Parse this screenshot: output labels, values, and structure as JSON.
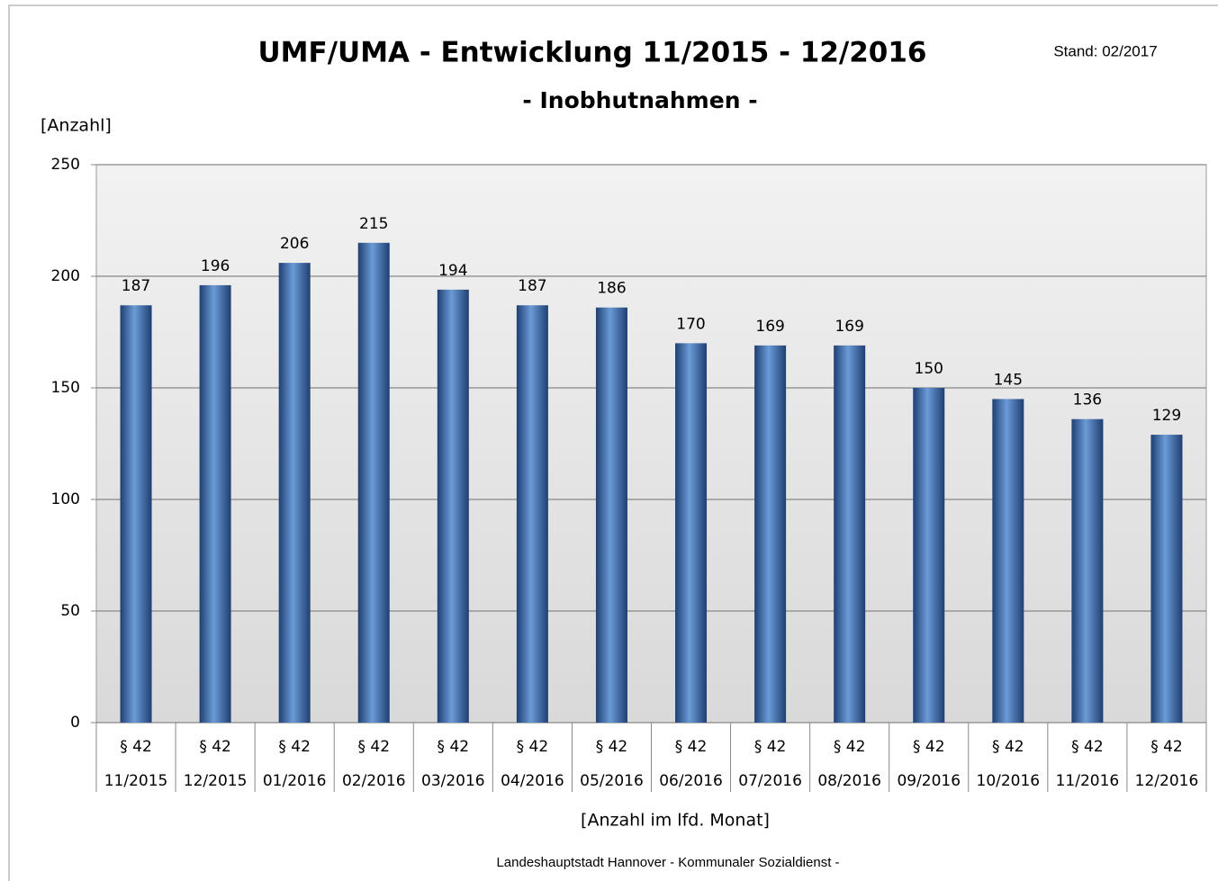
{
  "chart_data": {
    "type": "bar",
    "title": "UMF/UMA - Entwicklung 11/2015 - 12/2016",
    "subtitle": "- Inobhutnahmen -",
    "annotation": "Stand: 02/2017",
    "y_label": "[Anzahl]",
    "x_label": "[Anzahl im lfd. Monat]",
    "footer": "Landeshauptstadt  Hannover  - Kommunaler  Sozialdienst  -",
    "category_sublabels": [
      "§ 42",
      "§ 42",
      "§ 42",
      "§ 42",
      "§ 42",
      "§ 42",
      "§ 42",
      "§ 42",
      "§ 42",
      "§ 42",
      "§ 42",
      "§ 42",
      "§ 42",
      "§ 42"
    ],
    "categories": [
      "11/2015",
      "12/2015",
      "01/2016",
      "02/2016",
      "03/2016",
      "04/2016",
      "05/2016",
      "06/2016",
      "07/2016",
      "08/2016",
      "09/2016",
      "10/2016",
      "11/2016",
      "12/2016"
    ],
    "values": [
      187,
      196,
      206,
      215,
      194,
      187,
      186,
      170,
      169,
      169,
      150,
      145,
      136,
      129
    ],
    "color": "#4f81bd",
    "ylim": [
      0,
      250
    ],
    "yticks": [
      0,
      50,
      100,
      150,
      200,
      250
    ],
    "grid": true
  }
}
